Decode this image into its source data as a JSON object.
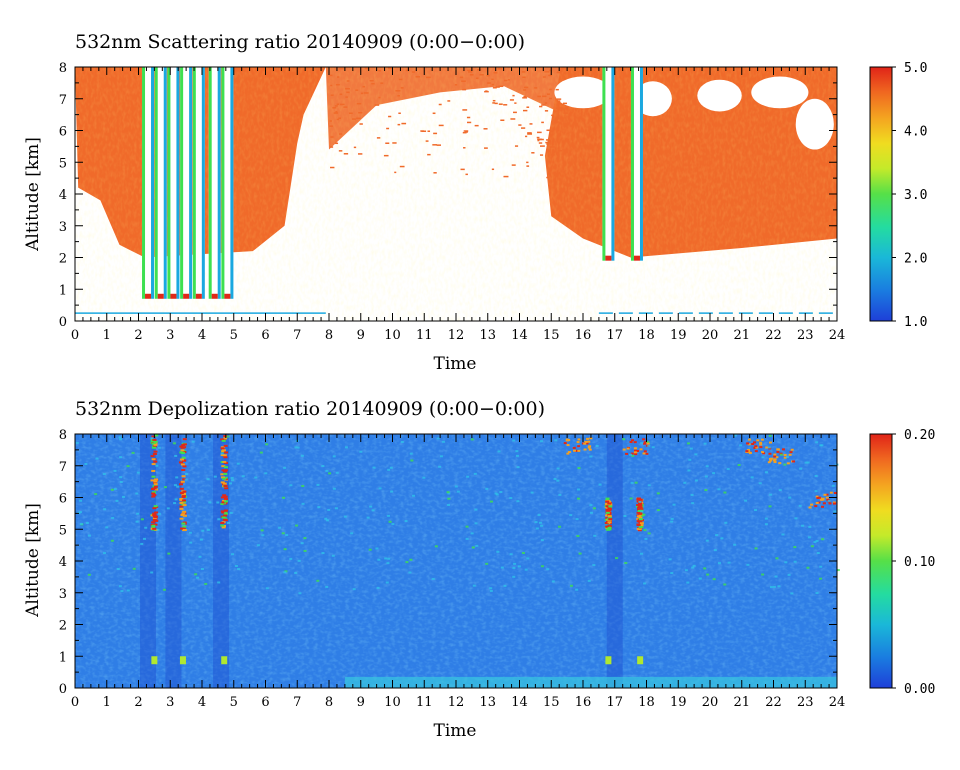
{
  "chart_data": [
    {
      "type": "heatmap",
      "title": "532nm Scattering ratio  20140909 (0:00−0:00)",
      "xlabel": "Time",
      "ylabel": "Altitude [km]",
      "xlim": [
        0,
        24
      ],
      "ylim": [
        0,
        8
      ],
      "x_ticks": [
        "0",
        "1",
        "2",
        "3",
        "4",
        "5",
        "6",
        "7",
        "8",
        "9",
        "10",
        "11",
        "12",
        "13",
        "14",
        "15",
        "16",
        "17",
        "18",
        "19",
        "20",
        "21",
        "22",
        "23",
        "24"
      ],
      "y_ticks": [
        "0",
        "1",
        "2",
        "3",
        "4",
        "5",
        "6",
        "7",
        "8"
      ],
      "colorbar": {
        "min": 1.0,
        "max": 5.0,
        "tick_labels": [
          "1.0",
          "2.0",
          "3.0",
          "4.0",
          "5.0"
        ],
        "tick_values": [
          1.0,
          2.0,
          3.0,
          4.0,
          5.0
        ]
      },
      "features": {
        "cloud_columns_hours": [
          2.3,
          2.7,
          3.1,
          3.5,
          3.9,
          4.4,
          4.8,
          16.8,
          17.7
        ],
        "cloud_column_base_km": 0.7,
        "clear_region_hours": [
          8.0,
          15.3
        ],
        "upper_clear_patches_hours": [
          15.3,
          24.0
        ],
        "surface_line_km": 0.25
      }
    },
    {
      "type": "heatmap",
      "title": "532nm Depolization ratio  20140909 (0:00−0:00)",
      "xlabel": "Time",
      "ylabel": "Altitude [km]",
      "xlim": [
        0,
        24
      ],
      "ylim": [
        0,
        8
      ],
      "x_ticks": [
        "0",
        "1",
        "2",
        "3",
        "4",
        "5",
        "6",
        "7",
        "8",
        "9",
        "10",
        "11",
        "12",
        "13",
        "14",
        "15",
        "16",
        "17",
        "18",
        "19",
        "20",
        "21",
        "22",
        "23",
        "24"
      ],
      "y_ticks": [
        "0",
        "1",
        "2",
        "3",
        "4",
        "5",
        "6",
        "7",
        "8"
      ],
      "colorbar": {
        "min": 0.0,
        "max": 0.2,
        "tick_labels": [
          "0.00",
          "0.10",
          "0.20"
        ],
        "tick_values": [
          0.0,
          0.1,
          0.2
        ]
      },
      "features": {
        "high_depol_columns_hours": [
          2.5,
          3.4,
          4.7,
          16.8,
          17.8
        ],
        "upper_high_depol_hours": [
          15.8,
          18.0,
          21.0,
          23.8
        ],
        "surface_layer_km": 0.2
      }
    }
  ],
  "colors": {
    "scale": [
      "#1e3fd8",
      "#1aa8e0",
      "#18d4b0",
      "#3ee050",
      "#b0e830",
      "#f0e020",
      "#f4a020",
      "#f06020",
      "#e02818"
    ],
    "background": "#ffffff",
    "scatter_ratio_fill": "#f06a2a",
    "depol_background": "#2f7ee6"
  }
}
